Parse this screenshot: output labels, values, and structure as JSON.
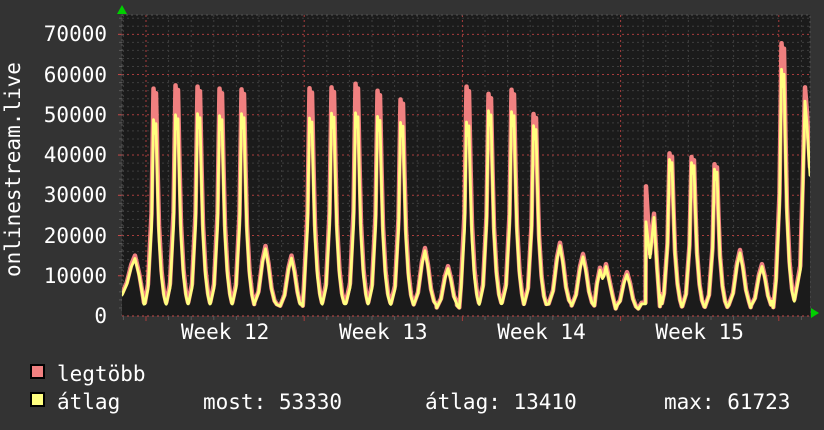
{
  "chart_data": {
    "type": "line",
    "title_vertical": "onlinestream.live",
    "x_axis": {
      "unit": "days (0 = start of Week 12, weekly red gridlines, daily gray gridlines)",
      "x_range_days": [
        -1.062,
        29.381
      ],
      "labels": [
        "Week 12",
        "Week 13",
        "Week 14",
        "Week 15"
      ],
      "label_days": [
        3.5,
        10.5,
        17.5,
        24.5
      ],
      "week_boundary_days": [
        0,
        7,
        14,
        21,
        28
      ]
    },
    "y_axis": {
      "ticks": [
        0,
        10000,
        20000,
        30000,
        40000,
        50000,
        60000,
        70000
      ],
      "minor_step": 2000,
      "range": [
        0,
        74800
      ],
      "grid": true
    },
    "series": [
      {
        "id": "legtobb",
        "label": "legtöbb",
        "color": "#f08080",
        "role": "daily maximum line"
      },
      {
        "id": "atlag",
        "label": "átlag",
        "color": "#ffff80",
        "role": "daily average line"
      }
    ],
    "stats": [
      {
        "label": "most",
        "value": "53330"
      },
      {
        "label": "átlag",
        "value": "13410"
      },
      {
        "label": "max",
        "value": "61723"
      }
    ],
    "daily_peaks": [
      {
        "day": 0.398,
        "max": 56500,
        "avg": 48800,
        "shape": "tall"
      },
      {
        "day": 1.372,
        "max": 57300,
        "avg": 50000,
        "shape": "tall"
      },
      {
        "day": 2.345,
        "max": 57000,
        "avg": 50300,
        "shape": "tall"
      },
      {
        "day": 3.319,
        "max": 56500,
        "avg": 49800,
        "shape": "tall"
      },
      {
        "day": 4.292,
        "max": 56300,
        "avg": 50300,
        "shape": "tall"
      },
      {
        "day": 5.288,
        "max": 17400,
        "avg": 16700,
        "shape": "small"
      },
      {
        "day": 6.438,
        "max": 15000,
        "avg": 14400,
        "shape": "small"
      },
      {
        "day": 7.301,
        "max": 56600,
        "avg": 49200,
        "shape": "tall"
      },
      {
        "day": 8.274,
        "max": 56800,
        "avg": 50400,
        "shape": "tall"
      },
      {
        "day": 9.336,
        "max": 57700,
        "avg": 50500,
        "shape": "tall"
      },
      {
        "day": 10.31,
        "max": 56000,
        "avg": 49600,
        "shape": "tall"
      },
      {
        "day": 11.327,
        "max": 53800,
        "avg": 48100,
        "shape": "tall"
      },
      {
        "day": 12.345,
        "max": 16900,
        "avg": 16200,
        "shape": "small"
      },
      {
        "day": 13.363,
        "max": 12400,
        "avg": 11800,
        "shape": "small"
      },
      {
        "day": 14.248,
        "max": 57000,
        "avg": 48200,
        "shape": "tall"
      },
      {
        "day": 15.221,
        "max": 55200,
        "avg": 51000,
        "shape": "tall"
      },
      {
        "day": 16.239,
        "max": 56200,
        "avg": 50800,
        "shape": "tall"
      },
      {
        "day": 17.212,
        "max": 50200,
        "avg": 47300,
        "shape": "tall"
      },
      {
        "day": 18.319,
        "max": 18200,
        "avg": 17500,
        "shape": "small"
      },
      {
        "day": 19.336,
        "max": 15400,
        "avg": 14700,
        "shape": "small"
      },
      {
        "day": 21.283,
        "max": 10900,
        "avg": 10300,
        "shape": "small"
      },
      {
        "day": 23.23,
        "max": 40400,
        "avg": 38900,
        "shape": "tall"
      },
      {
        "day": 24.204,
        "max": 39500,
        "avg": 38100,
        "shape": "tall"
      },
      {
        "day": 25.221,
        "max": 37700,
        "avg": 36500,
        "shape": "tall"
      },
      {
        "day": 26.283,
        "max": 16400,
        "avg": 15700,
        "shape": "small"
      },
      {
        "day": 27.257,
        "max": 12900,
        "avg": 12300,
        "shape": "small"
      },
      {
        "day": 28.186,
        "max": 67800,
        "avg": 61300,
        "shape": "tall"
      }
    ],
    "shapes": {
      "tall": [
        [
          -0.49,
          0.06
        ],
        [
          -0.31,
          0.14
        ],
        [
          -0.155,
          0.45
        ],
        [
          -0.066,
          1.0
        ],
        [
          0.0,
          0.93
        ],
        [
          0.044,
          0.98
        ],
        [
          0.111,
          0.66
        ],
        [
          0.177,
          0.4
        ],
        [
          0.288,
          0.2
        ],
        [
          0.398,
          0.1
        ],
        [
          0.5,
          0.06
        ]
      ],
      "small": [
        [
          -0.5,
          0.17
        ],
        [
          -0.31,
          0.35
        ],
        [
          -0.133,
          0.8
        ],
        [
          0.0,
          1.0
        ],
        [
          0.133,
          0.75
        ],
        [
          0.266,
          0.4
        ],
        [
          0.398,
          0.22
        ],
        [
          0.5,
          0.17
        ]
      ]
    },
    "custom_segments": [
      {
        "name": "start-sunday-week11",
        "points": [
          [
            -1.062,
            5600,
            5200
          ],
          [
            -0.85,
            8300,
            7900
          ],
          [
            -0.65,
            12800,
            12200
          ],
          [
            -0.487,
            15000,
            14300
          ],
          [
            -0.3,
            10500,
            10000
          ],
          [
            -0.13,
            4800,
            4500
          ],
          [
            -0.05,
            3300,
            3000
          ]
        ]
      },
      {
        "name": "sunday-week14-double-bump",
        "points": [
          [
            19.84,
            2700,
            2500
          ],
          [
            19.95,
            8100,
            7700
          ],
          [
            20.088,
            12000,
            11400
          ],
          [
            20.2,
            9800,
            9300
          ],
          [
            20.27,
            10500,
            10000
          ],
          [
            20.354,
            12900,
            12300
          ],
          [
            20.5,
            9000,
            8600
          ],
          [
            20.65,
            5000,
            4700
          ],
          [
            20.85,
            2900,
            2700
          ]
        ]
      },
      {
        "name": "tuesday-week15-cliff",
        "points": [
          [
            21.93,
            3300,
            3000
          ],
          [
            22.1,
            3300,
            3000
          ],
          [
            22.124,
            32200,
            23400
          ],
          [
            22.3,
            15500,
            14500
          ],
          [
            22.478,
            25400,
            24500
          ],
          [
            22.62,
            12000,
            11200
          ],
          [
            22.75,
            5500,
            5200
          ],
          [
            22.83,
            3200,
            3000
          ]
        ]
      },
      {
        "name": "end-week16-tuesday",
        "points": [
          [
            28.69,
            4200,
            3800
          ],
          [
            28.95,
            12500,
            11500
          ],
          [
            29.06,
            33000,
            31000
          ],
          [
            29.159,
            56800,
            53400
          ],
          [
            29.25,
            50500,
            47500
          ],
          [
            29.32,
            43000,
            40500
          ],
          [
            29.381,
            37000,
            35000
          ]
        ]
      }
    ],
    "colors": {
      "background": "#333333",
      "plot_background": "#1b1b1b",
      "grid_minor": "#3e3e3e",
      "grid_major": "#a83c3c",
      "axis_baseline": "#c84848",
      "border_dotted": "#565656",
      "tick_day": "#5a5a5a",
      "arrow": "#00cf00",
      "text": "#ffffff",
      "series_max": "#f08080",
      "series_avg": "#ffff80"
    },
    "legend_position": "bottom-left"
  }
}
